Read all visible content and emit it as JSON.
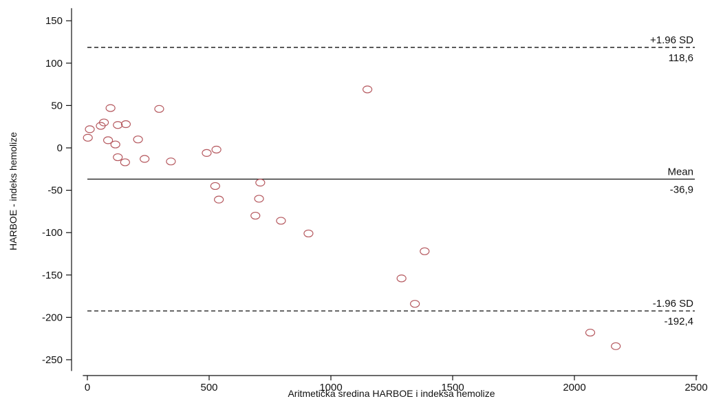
{
  "chart_data": {
    "type": "scatter",
    "title": "",
    "xlabel": "Aritmetička sredina HARBOE i indeksa hemolize",
    "ylabel": "HARBOE - indeks hemolize",
    "xlim": [
      -30,
      2510
    ],
    "ylim": [
      -260,
      160
    ],
    "x_ticks": [
      0,
      500,
      1000,
      1500,
      2000,
      2500
    ],
    "y_ticks": [
      150,
      100,
      50,
      0,
      -50,
      -100,
      -150,
      -200,
      -250
    ],
    "grid": false,
    "marker_color": "#b5585e",
    "reference_lines": [
      {
        "name": "+1.96 SD",
        "value": 118.6,
        "value_label": "118,6",
        "style": "dashed"
      },
      {
        "name": "Mean",
        "value": -36.9,
        "value_label": "-36,9",
        "style": "solid"
      },
      {
        "name": "-1.96 SD",
        "value": -192.4,
        "value_label": "-192,4",
        "style": "dashed"
      }
    ],
    "points": [
      {
        "x": 2,
        "y": 12
      },
      {
        "x": 10,
        "y": 22
      },
      {
        "x": 55,
        "y": 26
      },
      {
        "x": 68,
        "y": 30
      },
      {
        "x": 85,
        "y": 9
      },
      {
        "x": 95,
        "y": 47
      },
      {
        "x": 115,
        "y": 4
      },
      {
        "x": 125,
        "y": -11
      },
      {
        "x": 125,
        "y": 27
      },
      {
        "x": 155,
        "y": -17
      },
      {
        "x": 158,
        "y": 28
      },
      {
        "x": 208,
        "y": 10
      },
      {
        "x": 235,
        "y": -13
      },
      {
        "x": 295,
        "y": 46
      },
      {
        "x": 343,
        "y": -16
      },
      {
        "x": 490,
        "y": -6
      },
      {
        "x": 525,
        "y": -45
      },
      {
        "x": 530,
        "y": -2
      },
      {
        "x": 540,
        "y": -61
      },
      {
        "x": 690,
        "y": -80
      },
      {
        "x": 705,
        "y": -60
      },
      {
        "x": 710,
        "y": -41
      },
      {
        "x": 795,
        "y": -86
      },
      {
        "x": 908,
        "y": -101
      },
      {
        "x": 1150,
        "y": 69
      },
      {
        "x": 1290,
        "y": -154
      },
      {
        "x": 1345,
        "y": -184
      },
      {
        "x": 1385,
        "y": -122
      },
      {
        "x": 2065,
        "y": -218
      },
      {
        "x": 2170,
        "y": -234
      }
    ]
  }
}
